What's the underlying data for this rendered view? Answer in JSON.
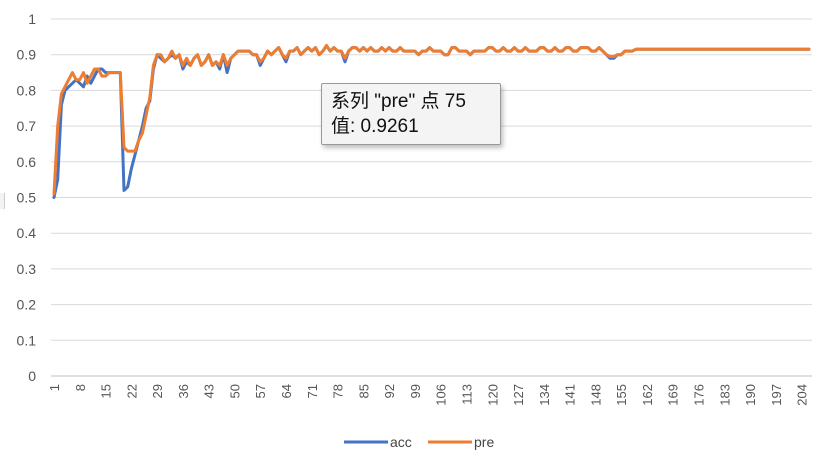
{
  "chart_data": {
    "type": "line",
    "title": "",
    "xlabel": "",
    "ylabel": "",
    "ylim": [
      0,
      1
    ],
    "yticks": [
      "0",
      "0.1",
      "0.2",
      "0.3",
      "0.4",
      "0.5",
      "0.6",
      "0.7",
      "0.8",
      "0.9",
      "1"
    ],
    "x_range": [
      1,
      206
    ],
    "x_tick_labels": [
      "1",
      "8",
      "15",
      "22",
      "29",
      "36",
      "43",
      "50",
      "57",
      "64",
      "71",
      "78",
      "85",
      "92",
      "99",
      "106",
      "113",
      "120",
      "127",
      "134",
      "141",
      "148",
      "155",
      "162",
      "169",
      "176",
      "183",
      "190",
      "197",
      "204"
    ],
    "grid": "horizontal",
    "legend_position": "bottom",
    "series": [
      {
        "name": "acc",
        "color": "#4472c4",
        "points": [
          [
            1,
            0.5
          ],
          [
            2,
            0.55
          ],
          [
            3,
            0.76
          ],
          [
            4,
            0.8
          ],
          [
            5,
            0.81
          ],
          [
            6,
            0.82
          ],
          [
            7,
            0.83
          ],
          [
            8,
            0.82
          ],
          [
            9,
            0.81
          ],
          [
            10,
            0.84
          ],
          [
            11,
            0.82
          ],
          [
            12,
            0.84
          ],
          [
            13,
            0.86
          ],
          [
            14,
            0.86
          ],
          [
            15,
            0.85
          ],
          [
            16,
            0.85
          ],
          [
            17,
            0.85
          ],
          [
            18,
            0.85
          ],
          [
            19,
            0.85
          ],
          [
            20,
            0.52
          ],
          [
            21,
            0.53
          ],
          [
            22,
            0.58
          ],
          [
            23,
            0.62
          ],
          [
            24,
            0.66
          ],
          [
            25,
            0.7
          ],
          [
            26,
            0.75
          ],
          [
            27,
            0.77
          ],
          [
            28,
            0.86
          ],
          [
            29,
            0.9
          ],
          [
            30,
            0.89
          ],
          [
            31,
            0.88
          ],
          [
            32,
            0.89
          ],
          [
            33,
            0.9
          ],
          [
            34,
            0.89
          ],
          [
            35,
            0.9
          ],
          [
            36,
            0.86
          ],
          [
            37,
            0.88
          ],
          [
            38,
            0.87
          ],
          [
            39,
            0.89
          ],
          [
            40,
            0.9
          ],
          [
            41,
            0.87
          ],
          [
            42,
            0.88
          ],
          [
            43,
            0.9
          ],
          [
            44,
            0.87
          ],
          [
            45,
            0.88
          ],
          [
            46,
            0.86
          ],
          [
            47,
            0.9
          ],
          [
            48,
            0.85
          ],
          [
            49,
            0.89
          ],
          [
            50,
            0.9
          ],
          [
            51,
            0.91
          ],
          [
            52,
            0.91
          ],
          [
            53,
            0.91
          ],
          [
            54,
            0.91
          ],
          [
            55,
            0.9
          ],
          [
            56,
            0.9
          ],
          [
            57,
            0.87
          ],
          [
            58,
            0.89
          ],
          [
            59,
            0.91
          ],
          [
            60,
            0.9
          ],
          [
            61,
            0.91
          ],
          [
            62,
            0.92
          ],
          [
            63,
            0.9
          ],
          [
            64,
            0.88
          ],
          [
            65,
            0.91
          ],
          [
            66,
            0.91
          ],
          [
            67,
            0.92
          ],
          [
            68,
            0.9
          ],
          [
            69,
            0.91
          ],
          [
            70,
            0.92
          ],
          [
            71,
            0.91
          ],
          [
            72,
            0.92
          ],
          [
            73,
            0.9
          ],
          [
            74,
            0.91
          ],
          [
            75,
            0.925
          ],
          [
            76,
            0.91
          ],
          [
            77,
            0.92
          ],
          [
            78,
            0.91
          ],
          [
            79,
            0.91
          ],
          [
            80,
            0.88
          ],
          [
            81,
            0.91
          ],
          [
            82,
            0.92
          ],
          [
            83,
            0.92
          ],
          [
            84,
            0.91
          ],
          [
            85,
            0.92
          ],
          [
            86,
            0.91
          ],
          [
            87,
            0.92
          ],
          [
            88,
            0.91
          ],
          [
            89,
            0.91
          ],
          [
            90,
            0.92
          ],
          [
            91,
            0.91
          ],
          [
            92,
            0.92
          ],
          [
            93,
            0.91
          ],
          [
            94,
            0.91
          ],
          [
            95,
            0.92
          ],
          [
            96,
            0.91
          ],
          [
            97,
            0.91
          ],
          [
            98,
            0.91
          ],
          [
            99,
            0.91
          ],
          [
            100,
            0.9
          ],
          [
            101,
            0.91
          ],
          [
            102,
            0.91
          ],
          [
            103,
            0.92
          ],
          [
            104,
            0.91
          ],
          [
            105,
            0.91
          ],
          [
            106,
            0.91
          ],
          [
            107,
            0.9
          ],
          [
            108,
            0.9
          ],
          [
            109,
            0.92
          ],
          [
            110,
            0.92
          ],
          [
            111,
            0.91
          ],
          [
            112,
            0.91
          ],
          [
            113,
            0.91
          ],
          [
            114,
            0.9
          ],
          [
            115,
            0.91
          ],
          [
            116,
            0.91
          ],
          [
            117,
            0.91
          ],
          [
            118,
            0.91
          ],
          [
            119,
            0.92
          ],
          [
            120,
            0.92
          ],
          [
            121,
            0.91
          ],
          [
            122,
            0.91
          ],
          [
            123,
            0.92
          ],
          [
            124,
            0.91
          ],
          [
            125,
            0.91
          ],
          [
            126,
            0.92
          ],
          [
            127,
            0.91
          ],
          [
            128,
            0.91
          ],
          [
            129,
            0.92
          ],
          [
            130,
            0.91
          ],
          [
            131,
            0.91
          ],
          [
            132,
            0.91
          ],
          [
            133,
            0.92
          ],
          [
            134,
            0.92
          ],
          [
            135,
            0.91
          ],
          [
            136,
            0.91
          ],
          [
            137,
            0.92
          ],
          [
            138,
            0.91
          ],
          [
            139,
            0.91
          ],
          [
            140,
            0.92
          ],
          [
            141,
            0.92
          ],
          [
            142,
            0.91
          ],
          [
            143,
            0.91
          ],
          [
            144,
            0.92
          ],
          [
            145,
            0.92
          ],
          [
            146,
            0.92
          ],
          [
            147,
            0.91
          ],
          [
            148,
            0.91
          ],
          [
            149,
            0.92
          ],
          [
            150,
            0.91
          ],
          [
            151,
            0.9
          ],
          [
            152,
            0.89
          ],
          [
            153,
            0.89
          ],
          [
            154,
            0.9
          ],
          [
            155,
            0.9
          ],
          [
            156,
            0.91
          ],
          [
            157,
            0.91
          ],
          [
            158,
            0.91
          ],
          [
            159,
            0.915
          ],
          [
            160,
            0.915
          ],
          [
            161,
            0.915
          ],
          [
            206,
            0.915
          ]
        ]
      },
      {
        "name": "pre",
        "color": "#ed7d31",
        "points": [
          [
            1,
            0.51
          ],
          [
            2,
            0.7
          ],
          [
            3,
            0.79
          ],
          [
            4,
            0.81
          ],
          [
            5,
            0.83
          ],
          [
            6,
            0.85
          ],
          [
            7,
            0.83
          ],
          [
            8,
            0.83
          ],
          [
            9,
            0.85
          ],
          [
            10,
            0.82
          ],
          [
            11,
            0.84
          ],
          [
            12,
            0.86
          ],
          [
            13,
            0.86
          ],
          [
            14,
            0.84
          ],
          [
            15,
            0.84
          ],
          [
            16,
            0.85
          ],
          [
            17,
            0.85
          ],
          [
            18,
            0.85
          ],
          [
            19,
            0.85
          ],
          [
            20,
            0.64
          ],
          [
            21,
            0.63
          ],
          [
            22,
            0.63
          ],
          [
            23,
            0.63
          ],
          [
            24,
            0.66
          ],
          [
            25,
            0.68
          ],
          [
            26,
            0.73
          ],
          [
            27,
            0.78
          ],
          [
            28,
            0.87
          ],
          [
            29,
            0.9
          ],
          [
            30,
            0.9
          ],
          [
            31,
            0.88
          ],
          [
            32,
            0.89
          ],
          [
            33,
            0.91
          ],
          [
            34,
            0.89
          ],
          [
            35,
            0.9
          ],
          [
            36,
            0.87
          ],
          [
            37,
            0.89
          ],
          [
            38,
            0.87
          ],
          [
            39,
            0.89
          ],
          [
            40,
            0.9
          ],
          [
            41,
            0.87
          ],
          [
            42,
            0.88
          ],
          [
            43,
            0.9
          ],
          [
            44,
            0.87
          ],
          [
            45,
            0.88
          ],
          [
            46,
            0.87
          ],
          [
            47,
            0.9
          ],
          [
            48,
            0.87
          ],
          [
            49,
            0.89
          ],
          [
            50,
            0.9
          ],
          [
            51,
            0.91
          ],
          [
            52,
            0.91
          ],
          [
            53,
            0.91
          ],
          [
            54,
            0.91
          ],
          [
            55,
            0.9
          ],
          [
            56,
            0.9
          ],
          [
            57,
            0.88
          ],
          [
            58,
            0.89
          ],
          [
            59,
            0.91
          ],
          [
            60,
            0.9
          ],
          [
            61,
            0.91
          ],
          [
            62,
            0.92
          ],
          [
            63,
            0.9
          ],
          [
            64,
            0.89
          ],
          [
            65,
            0.91
          ],
          [
            66,
            0.91
          ],
          [
            67,
            0.92
          ],
          [
            68,
            0.9
          ],
          [
            69,
            0.91
          ],
          [
            70,
            0.92
          ],
          [
            71,
            0.91
          ],
          [
            72,
            0.92
          ],
          [
            73,
            0.9
          ],
          [
            74,
            0.91
          ],
          [
            75,
            0.9261
          ],
          [
            76,
            0.91
          ],
          [
            77,
            0.92
          ],
          [
            78,
            0.91
          ],
          [
            79,
            0.91
          ],
          [
            80,
            0.89
          ],
          [
            81,
            0.91
          ],
          [
            82,
            0.92
          ],
          [
            83,
            0.92
          ],
          [
            84,
            0.91
          ],
          [
            85,
            0.92
          ],
          [
            86,
            0.91
          ],
          [
            87,
            0.92
          ],
          [
            88,
            0.91
          ],
          [
            89,
            0.91
          ],
          [
            90,
            0.92
          ],
          [
            91,
            0.91
          ],
          [
            92,
            0.92
          ],
          [
            93,
            0.91
          ],
          [
            94,
            0.91
          ],
          [
            95,
            0.92
          ],
          [
            96,
            0.91
          ],
          [
            97,
            0.91
          ],
          [
            98,
            0.91
          ],
          [
            99,
            0.91
          ],
          [
            100,
            0.9
          ],
          [
            101,
            0.91
          ],
          [
            102,
            0.91
          ],
          [
            103,
            0.92
          ],
          [
            104,
            0.91
          ],
          [
            105,
            0.91
          ],
          [
            106,
            0.91
          ],
          [
            107,
            0.9
          ],
          [
            108,
            0.9
          ],
          [
            109,
            0.92
          ],
          [
            110,
            0.92
          ],
          [
            111,
            0.91
          ],
          [
            112,
            0.91
          ],
          [
            113,
            0.91
          ],
          [
            114,
            0.9
          ],
          [
            115,
            0.91
          ],
          [
            116,
            0.91
          ],
          [
            117,
            0.91
          ],
          [
            118,
            0.91
          ],
          [
            119,
            0.92
          ],
          [
            120,
            0.92
          ],
          [
            121,
            0.91
          ],
          [
            122,
            0.91
          ],
          [
            123,
            0.92
          ],
          [
            124,
            0.91
          ],
          [
            125,
            0.91
          ],
          [
            126,
            0.92
          ],
          [
            127,
            0.91
          ],
          [
            128,
            0.91
          ],
          [
            129,
            0.92
          ],
          [
            130,
            0.91
          ],
          [
            131,
            0.91
          ],
          [
            132,
            0.91
          ],
          [
            133,
            0.92
          ],
          [
            134,
            0.92
          ],
          [
            135,
            0.91
          ],
          [
            136,
            0.91
          ],
          [
            137,
            0.92
          ],
          [
            138,
            0.91
          ],
          [
            139,
            0.91
          ],
          [
            140,
            0.92
          ],
          [
            141,
            0.92
          ],
          [
            142,
            0.91
          ],
          [
            143,
            0.91
          ],
          [
            144,
            0.92
          ],
          [
            145,
            0.92
          ],
          [
            146,
            0.92
          ],
          [
            147,
            0.91
          ],
          [
            148,
            0.91
          ],
          [
            149,
            0.92
          ],
          [
            150,
            0.91
          ],
          [
            151,
            0.9
          ],
          [
            152,
            0.895
          ],
          [
            153,
            0.895
          ],
          [
            154,
            0.9
          ],
          [
            155,
            0.9
          ],
          [
            156,
            0.91
          ],
          [
            157,
            0.91
          ],
          [
            158,
            0.91
          ],
          [
            159,
            0.915
          ],
          [
            160,
            0.915
          ],
          [
            161,
            0.915
          ],
          [
            206,
            0.915
          ]
        ]
      }
    ],
    "tooltip": {
      "line1": "系列 \"pre\" 点 75",
      "line2": "值: 0.9261"
    }
  }
}
